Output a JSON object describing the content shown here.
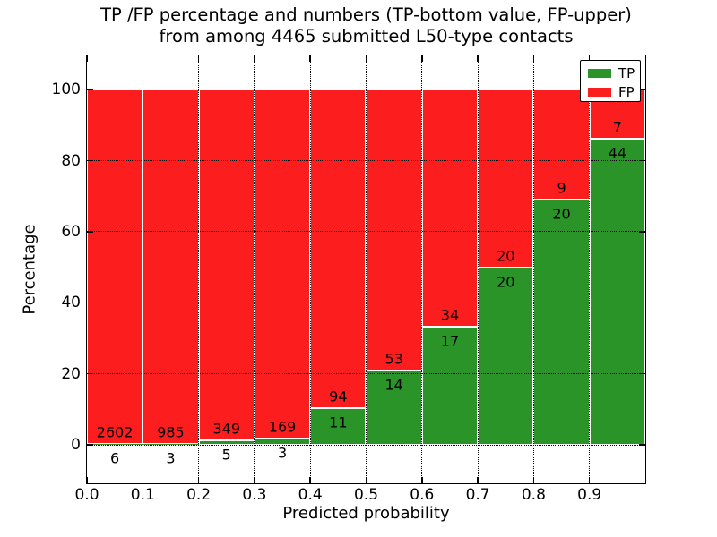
{
  "title": {
    "line1": "TP /FP percentage and numbers (TP-bottom value, FP-upper)",
    "line2": "from among 4465 submitted L50-type contacts"
  },
  "axes": {
    "xlabel": "Predicted probability",
    "ylabel": "Percentage",
    "ylim": [
      -10.8,
      109.6
    ],
    "xlim": [
      0,
      1
    ],
    "yticks": [
      {
        "v": 0,
        "label": "0"
      },
      {
        "v": 20,
        "label": "20"
      },
      {
        "v": 40,
        "label": "40"
      },
      {
        "v": 60,
        "label": "60"
      },
      {
        "v": 80,
        "label": "80"
      },
      {
        "v": 100,
        "label": "100"
      }
    ],
    "xticks": [
      {
        "v": 0.0,
        "label": "0.0"
      },
      {
        "v": 0.1,
        "label": "0.1"
      },
      {
        "v": 0.2,
        "label": "0.2"
      },
      {
        "v": 0.3,
        "label": "0.3"
      },
      {
        "v": 0.4,
        "label": "0.4"
      },
      {
        "v": 0.5,
        "label": "0.5"
      },
      {
        "v": 0.6,
        "label": "0.6"
      },
      {
        "v": 0.7,
        "label": "0.7"
      },
      {
        "v": 0.8,
        "label": "0.8"
      },
      {
        "v": 0.9,
        "label": "0.9"
      }
    ]
  },
  "legend": {
    "items": [
      {
        "label": "TP",
        "color": "#2a9428"
      },
      {
        "label": "FP",
        "color": "#fc1e1e"
      }
    ]
  },
  "chart_data": {
    "type": "bar",
    "stacked": true,
    "normalized": "each 0.1-wide bin scaled to 100%",
    "title": "TP /FP percentage and numbers (TP-bottom value, FP-upper) from among 4465 submitted L50-type contacts",
    "xlabel": "Predicted probability",
    "ylabel": "Percentage",
    "total_submitted": 4465,
    "bin_edges": [
      0.0,
      0.1,
      0.2,
      0.3,
      0.4,
      0.5,
      0.6,
      0.7,
      0.8,
      0.9,
      1.0
    ],
    "series": [
      {
        "name": "TP",
        "color": "#2a9428",
        "counts": [
          6,
          3,
          5,
          3,
          11,
          14,
          17,
          20,
          20,
          44
        ]
      },
      {
        "name": "FP",
        "color": "#fc1e1e",
        "counts": [
          2602,
          985,
          349,
          169,
          94,
          53,
          34,
          20,
          9,
          7
        ]
      }
    ],
    "tp_percent_of_bin": [
      0.23,
      0.3,
      1.41,
      1.74,
      10.48,
      20.9,
      33.33,
      50.0,
      68.97,
      86.27
    ],
    "annotation_scheme": "FP count printed just above the green/red boundary, TP count just below",
    "grid": "dotted black, on top of bars",
    "legend_position": "upper right",
    "ylim": [
      -11,
      110
    ],
    "xlim": [
      0,
      1
    ]
  }
}
